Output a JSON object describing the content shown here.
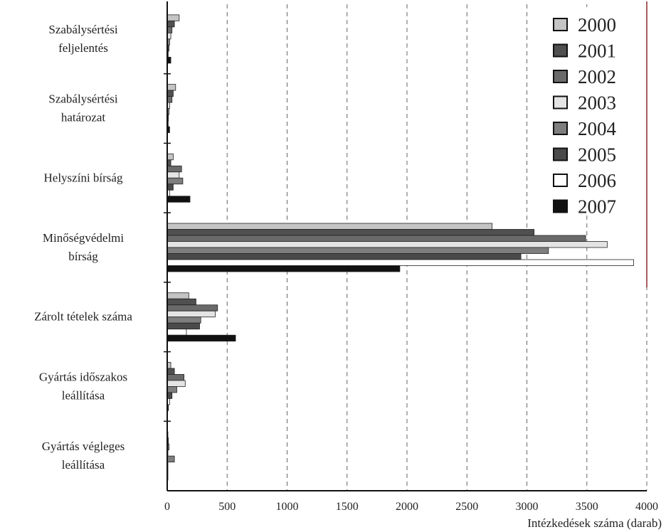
{
  "chart_data": {
    "type": "bar",
    "orientation": "horizontal",
    "categories": [
      [
        "Szabálysértési",
        "feljelentés"
      ],
      [
        "Szabálysértési",
        "határozat"
      ],
      [
        "Helyszíni bírság"
      ],
      [
        "Minőségvédelmi",
        "bírság"
      ],
      [
        "Zárolt tételek száma"
      ],
      [
        "Gyártás időszakos",
        "leállítása"
      ],
      [
        "Gyártás végleges",
        "leállítása"
      ]
    ],
    "series": [
      {
        "name": "2000",
        "color": "#c4c4c4",
        "values": [
          100,
          70,
          50,
          2710,
          180,
          30,
          5
        ]
      },
      {
        "name": "2001",
        "color": "#505050",
        "values": [
          60,
          50,
          30,
          3060,
          240,
          60,
          10
        ]
      },
      {
        "name": "2002",
        "color": "#6a6a6a",
        "values": [
          40,
          40,
          120,
          3490,
          420,
          140,
          15
        ]
      },
      {
        "name": "2003",
        "color": "#e4e4e4",
        "values": [
          30,
          20,
          100,
          3670,
          400,
          150,
          5
        ]
      },
      {
        "name": "2004",
        "color": "#7e7e7e",
        "values": [
          20,
          15,
          130,
          3180,
          280,
          80,
          60
        ]
      },
      {
        "name": "2005",
        "color": "#4a4a4a",
        "values": [
          15,
          10,
          50,
          2950,
          270,
          40,
          5
        ]
      },
      {
        "name": "2006",
        "color": "#ffffff",
        "values": [
          10,
          10,
          20,
          3890,
          160,
          20,
          3
        ]
      },
      {
        "name": "2007",
        "color": "#111111",
        "values": [
          30,
          20,
          190,
          1940,
          570,
          10,
          5
        ]
      }
    ],
    "xlim": [
      0,
      4000
    ],
    "xticks": [
      "0",
      "500",
      "1000",
      "1500",
      "2000",
      "2500",
      "3000",
      "3500",
      "4000"
    ],
    "xlabel": "Intézkedések száma (darab)",
    "ylabel": "",
    "title": "",
    "grid": "vertical dashed",
    "legend_position": "top-right"
  }
}
